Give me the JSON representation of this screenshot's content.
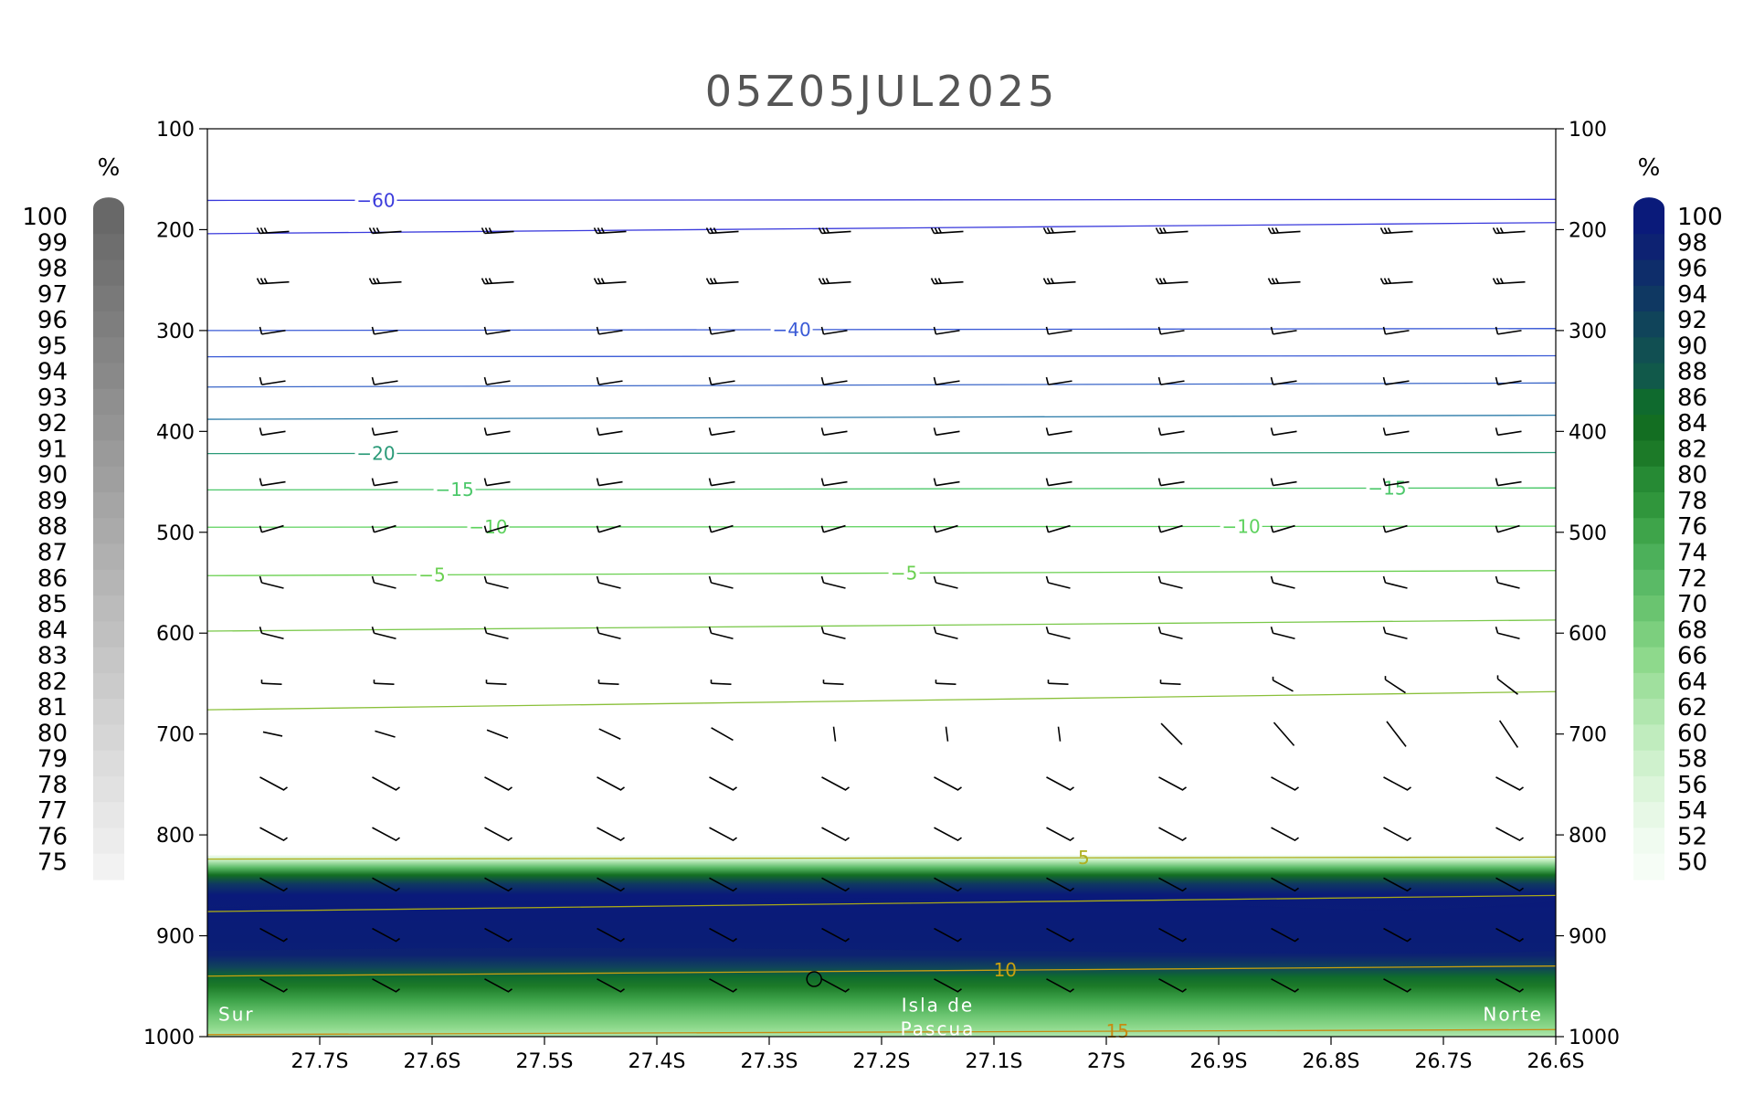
{
  "chart_data": {
    "type": "heatmap",
    "title": "05Z05JUL2025",
    "x": {
      "range": [
        27.8,
        26.6
      ],
      "tick_values": [
        27.7,
        27.6,
        27.5,
        27.4,
        27.3,
        27.2,
        27.1,
        27.0,
        26.9,
        26.8,
        26.7,
        26.6
      ],
      "tick_labels": [
        "27.7S",
        "27.6S",
        "27.5S",
        "27.4S",
        "27.3S",
        "27.2S",
        "27.1S",
        "27S",
        "26.9S",
        "26.8S",
        "26.7S",
        "26.6S"
      ]
    },
    "y": {
      "range": [
        100,
        1000
      ],
      "reversed": true,
      "tick_values": [
        100,
        200,
        300,
        400,
        500,
        600,
        700,
        800,
        900,
        1000
      ],
      "tick_labels": [
        "100",
        "200",
        "300",
        "400",
        "500",
        "600",
        "700",
        "800",
        "900",
        "1000"
      ]
    },
    "colorbar_left": {
      "unit": "%",
      "labels": [
        "100",
        "99",
        "98",
        "97",
        "96",
        "95",
        "94",
        "93",
        "92",
        "91",
        "90",
        "89",
        "88",
        "87",
        "86",
        "85",
        "84",
        "83",
        "82",
        "81",
        "80",
        "79",
        "78",
        "77",
        "76",
        "75"
      ],
      "min_color": "#f2f2f2",
      "max_color": "#686868"
    },
    "colorbar_right": {
      "unit": "%",
      "labels": [
        "100",
        "98",
        "96",
        "94",
        "92",
        "90",
        "88",
        "86",
        "84",
        "82",
        "80",
        "78",
        "76",
        "74",
        "72",
        "70",
        "68",
        "66",
        "64",
        "62",
        "60",
        "58",
        "56",
        "54",
        "52",
        "50"
      ],
      "colors": [
        "#0a1a7a",
        "#0d2272",
        "#0e2d6a",
        "#0f3862",
        "#10445a",
        "#114f52",
        "#11594a",
        "#0f6a2e",
        "#136e22",
        "#1c7a28",
        "#268a34",
        "#30963c",
        "#3ea44a",
        "#4cb05a",
        "#5aba66",
        "#6ac470",
        "#7ccf7e",
        "#8ed98c",
        "#a0e09e",
        "#b0e6ae",
        "#c0ecbe",
        "#cff1cd",
        "#dcf5da",
        "#e7f8e6",
        "#f0fbf0",
        "#f6fdf6"
      ]
    },
    "humidity_layer": {
      "pressure_band": [
        820,
        1000
      ],
      "core_pressure": [
        860,
        920
      ],
      "core_value": 100,
      "edge_value": 50
    },
    "temperature_contours": [
      {
        "label": "-60",
        "p_start": 171,
        "p_end": 170,
        "color": "#3a3adc",
        "label_x": 27.65
      },
      {
        "label": "",
        "p_start": 204,
        "p_end": 193,
        "color": "#3a3adc"
      },
      {
        "label": "-40",
        "p_start": 300,
        "p_end": 298,
        "color": "#3a5ad6",
        "label_x": 27.28
      },
      {
        "label": "",
        "p_start": 326,
        "p_end": 325,
        "color": "#3a5ad6"
      },
      {
        "label": "",
        "p_start": 356,
        "p_end": 352,
        "color": "#3a66c8"
      },
      {
        "label": "",
        "p_start": 388,
        "p_end": 384,
        "color": "#2a7aa8"
      },
      {
        "label": "-20",
        "p_start": 422,
        "p_end": 421,
        "color": "#2a9a78",
        "label_x": 27.65
      },
      {
        "label": "-15",
        "p_start": 458,
        "p_end": 456,
        "color": "#4cc86a",
        "label_x": 27.58,
        "label_x2": 26.75
      },
      {
        "label": "-10",
        "p_start": 495,
        "p_end": 494,
        "color": "#5ed25e",
        "label_x": 27.55,
        "label_x2": 26.88
      },
      {
        "label": "-5",
        "p_start": 543,
        "p_end": 538,
        "color": "#6ad050",
        "label_x": 27.6,
        "label_x2": 27.18
      },
      {
        "label": "",
        "p_start": 598,
        "p_end": 587,
        "color": "#7ac84a"
      },
      {
        "label": "",
        "p_start": 676,
        "p_end": 658,
        "color": "#8ac03a"
      },
      {
        "label": "5",
        "p_start": 824,
        "p_end": 822,
        "color": "#b0b020",
        "label_x": 27.02
      },
      {
        "label": "",
        "p_start": 876,
        "p_end": 860,
        "color": "#a8a818"
      },
      {
        "label": "10",
        "p_start": 940,
        "p_end": 930,
        "color": "#c8a010",
        "label_x": 27.09
      },
      {
        "label": "15",
        "p_start": 998,
        "p_end": 993,
        "color": "#c88a10",
        "label_x": 26.99
      }
    ],
    "wind_levels": [
      200,
      250,
      300,
      350,
      400,
      450,
      500,
      550,
      600,
      650,
      700,
      750,
      800,
      850,
      900,
      950
    ],
    "annotations": {
      "left": "Sur",
      "center_line1": "Isla de",
      "center_line2": "Pascua",
      "right": "Norte",
      "station_x": 27.26,
      "station_p": 943
    }
  }
}
